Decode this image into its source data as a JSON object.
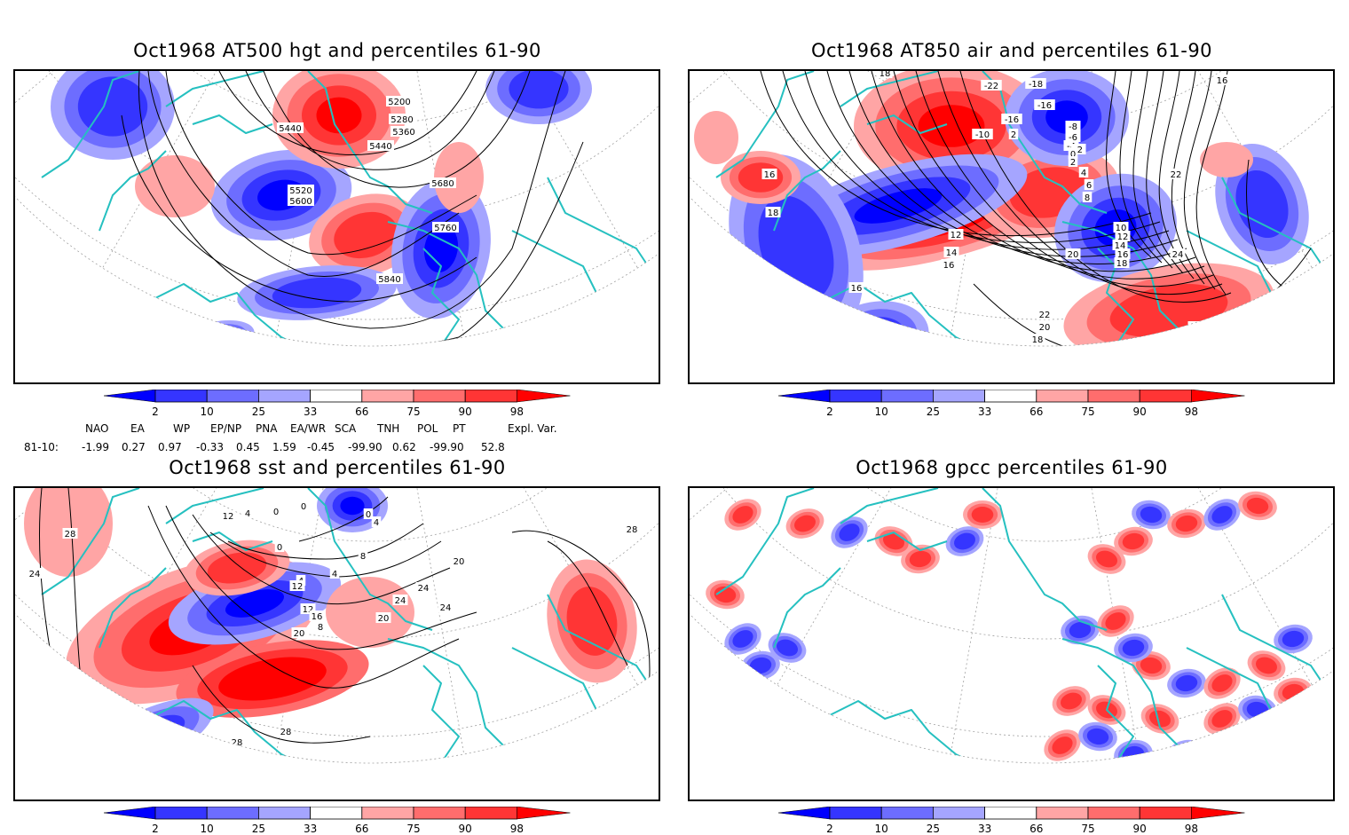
{
  "colors": {
    "p2": "#0000ff",
    "p10": "#3535ff",
    "p25": "#6d6dff",
    "p33": "#a5a5ff",
    "mid": "#ffffff",
    "p66": "#ffa5a5",
    "p75": "#ff6d6d",
    "p90": "#ff3535",
    "p98": "#ff0000",
    "coast": "#25c0c0",
    "contour": "#000000",
    "grid": "#a0a0a0"
  },
  "colorbar": {
    "labels": [
      "2",
      "10",
      "25",
      "33",
      "66",
      "75",
      "90",
      "98"
    ]
  },
  "indices": {
    "headers": [
      "NAO",
      "EA",
      "WP",
      "EP/NP",
      "PNA",
      "EA/WR",
      "SCA",
      "TNH",
      "POL",
      "PT",
      "Expl. Var."
    ],
    "row_label": "81-10:",
    "values": [
      "-1.99",
      "0.27",
      "0.97",
      "-0.33",
      "0.45",
      "1.59",
      "-0.45",
      "-99.90",
      "0.62",
      "-99.90",
      "52.8"
    ]
  },
  "chart_data": [
    {
      "type": "heatmap",
      "title": "Oct1968 AT500 hgt and percentiles 61-90",
      "variable": "500 hPa geopotential height (contours) with percentile shading",
      "contour_labels": [
        "5200",
        "5280",
        "5360",
        "5440",
        "5440",
        "5520",
        "5600",
        "5680",
        "5760",
        "5840"
      ],
      "legend_levels": [
        2,
        10,
        25,
        33,
        66,
        75,
        90,
        98
      ]
    },
    {
      "type": "heatmap",
      "title": "Oct1968 AT850 air and percentiles 61-90",
      "variable": "850 hPa air temperature (contours) with percentile shading",
      "contour_labels": [
        "-22",
        "-18",
        "-16",
        "-16",
        "-10",
        "2",
        "-8",
        "-6",
        "-4",
        "-2",
        "0",
        "2",
        "4",
        "6",
        "8",
        "10",
        "12",
        "14",
        "16",
        "18",
        "20",
        "22",
        "24",
        "12",
        "14",
        "16",
        "16",
        "18",
        "16",
        "16",
        "18",
        "22",
        "20",
        "18",
        "18"
      ],
      "legend_levels": [
        2,
        10,
        25,
        33,
        66,
        75,
        90,
        98
      ]
    },
    {
      "type": "heatmap",
      "title": "Oct1968 sst and percentiles 61-90",
      "variable": "sea surface temperature (contours) with percentile shading",
      "contour_labels": [
        "28",
        "24",
        "12",
        "4",
        "0",
        "0",
        "0",
        "0",
        "4",
        "4",
        "4",
        "8",
        "8",
        "12",
        "12",
        "16",
        "20",
        "20",
        "24",
        "24",
        "20",
        "24",
        "28",
        "28",
        "28"
      ],
      "legend_levels": [
        2,
        10,
        25,
        33,
        66,
        75,
        90,
        98
      ]
    },
    {
      "type": "heatmap",
      "title": "Oct1968 gpcc percentiles 61-90",
      "variable": "GPCC precipitation percentiles",
      "contour_labels": [],
      "legend_levels": [
        2,
        10,
        25,
        33,
        66,
        75,
        90,
        98
      ]
    }
  ]
}
